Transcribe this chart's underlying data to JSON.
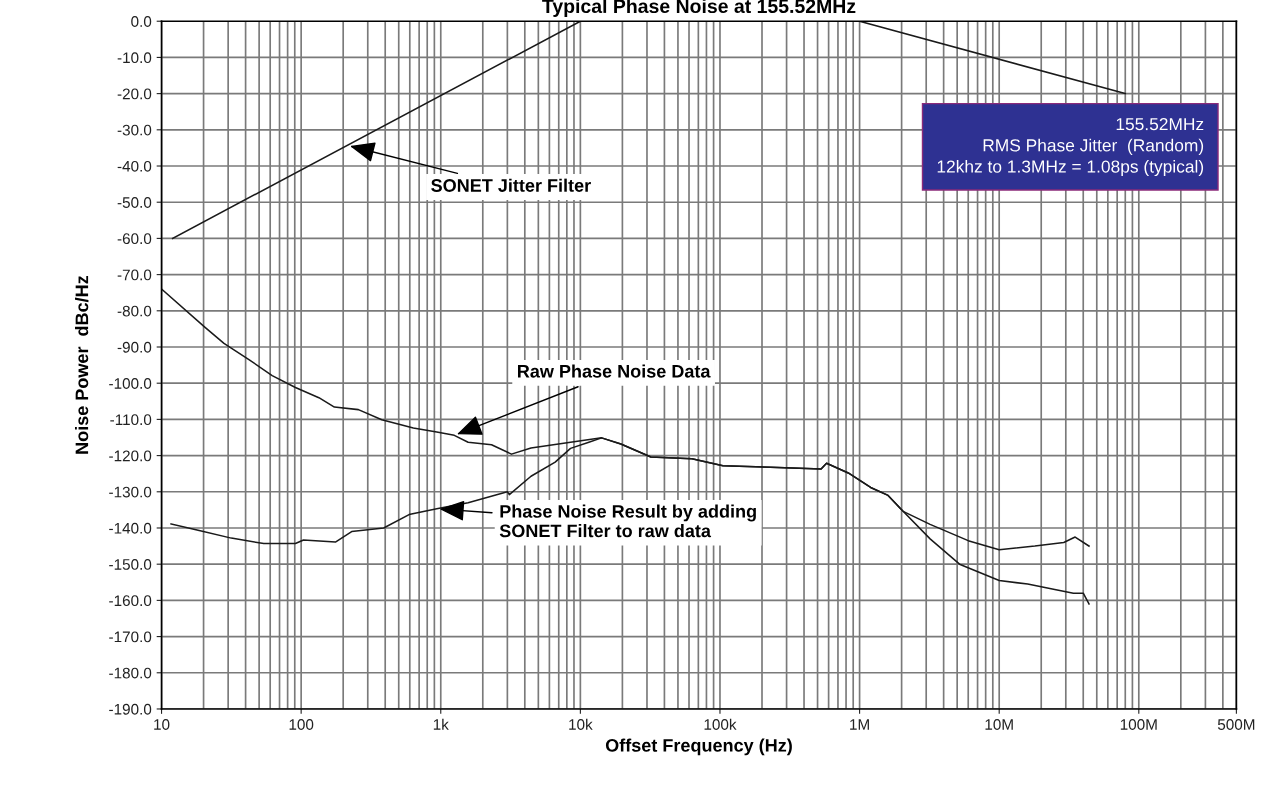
{
  "chart_data": {
    "type": "line",
    "title": "Typical Phase Noise at 155.52MHz",
    "xlabel": "Offset Frequency (Hz)",
    "ylabel": "Noise Power  dBc/Hz",
    "log": "x",
    "grid": true,
    "marker": "none",
    "line_style": "solid",
    "xlim": [
      10,
      500000000
    ],
    "xticks": [
      {
        "value": 10,
        "label": "10"
      },
      {
        "value": 100,
        "label": "100"
      },
      {
        "value": 1000,
        "label": "1k"
      },
      {
        "value": 10000,
        "label": "10k"
      },
      {
        "value": 100000,
        "label": "100k"
      },
      {
        "value": 1000000,
        "label": "1M"
      },
      {
        "value": 10000000,
        "label": "10M"
      },
      {
        "value": 100000000,
        "label": "100M"
      },
      {
        "value": 500000000,
        "label": "500M"
      }
    ],
    "ylim": [
      -190,
      0
    ],
    "yticks": [
      {
        "value": 0,
        "label": "0.0"
      },
      {
        "value": -10,
        "label": "-10.0"
      },
      {
        "value": -20,
        "label": "-20.0"
      },
      {
        "value": -30,
        "label": "-30.0"
      },
      {
        "value": -40,
        "label": "-40.0"
      },
      {
        "value": -50,
        "label": "-50.0"
      },
      {
        "value": -60,
        "label": "-60.0"
      },
      {
        "value": -70,
        "label": "-70.0"
      },
      {
        "value": -80,
        "label": "-80.0"
      },
      {
        "value": -90,
        "label": "-90.0"
      },
      {
        "value": -100,
        "label": "-100.0"
      },
      {
        "value": -110,
        "label": "-110.0"
      },
      {
        "value": -120,
        "label": "-120.0"
      },
      {
        "value": -130,
        "label": "-130.0"
      },
      {
        "value": -140,
        "label": "-140.0"
      },
      {
        "value": -150,
        "label": "-150.0"
      },
      {
        "value": -160,
        "label": "-160.0"
      },
      {
        "value": -170,
        "label": "-170.0"
      },
      {
        "value": -180,
        "label": "-180.0"
      },
      {
        "value": -190,
        "label": "-190.0"
      }
    ],
    "series": [
      {
        "color": "#1a1a1a",
        "x": [
          12,
          10000,
          1000000,
          80000000
        ],
        "values": [
          -60,
          0,
          0,
          -20
        ]
      },
      {
        "color": "#1a1a1a",
        "x": [
          10,
          20.4,
          28,
          42,
          62,
          91,
          134,
          173,
          257,
          378,
          636,
          936,
          1250,
          1570,
          2310,
          3210,
          4430,
          8500,
          14200,
          19500,
          32000,
          63000,
          105000,
          230000,
          530000,
          580000,
          830000,
          1200000,
          1600000,
          2050000,
          3200000,
          6000000,
          10000000,
          18000000,
          29000000,
          35000000,
          44000000
        ],
        "values": [
          -74,
          -84.5,
          -89,
          -93.4,
          -97.9,
          -101.2,
          -104,
          -106.6,
          -107.3,
          -110.1,
          -112.4,
          -113.5,
          -114.4,
          -116.3,
          -117,
          -119.6,
          -117.9,
          -116.3,
          -115.1,
          -116.8,
          -120.4,
          -120.9,
          -122.8,
          -123.2,
          -123.7,
          -122.1,
          -124.8,
          -128.8,
          -131,
          -135.4,
          -139,
          -143.5,
          -146,
          -145,
          -144,
          -142.5,
          -145
        ]
      },
      {
        "color": "#1a1a1a",
        "x": [
          11.7,
          18.6,
          31.6,
          54,
          91,
          104,
          176,
          230,
          390,
          593,
          936,
          1570,
          3000,
          3100,
          4430,
          6600,
          8500,
          11500,
          14200,
          19500,
          32000,
          63000,
          105000,
          230000,
          530000,
          580000,
          830000,
          1200000,
          1600000,
          2050000,
          3200000,
          5200000,
          10000000,
          16000000,
          25000000,
          34000000,
          40000000,
          44000000
        ],
        "values": [
          -138.9,
          -140.7,
          -142.8,
          -144.3,
          -144.3,
          -143.3,
          -143.9,
          -141,
          -140,
          -136.3,
          -134.7,
          -133,
          -130,
          -130.8,
          -125.7,
          -121.8,
          -118,
          -116.3,
          -115.1,
          -116.8,
          -120.4,
          -120.9,
          -122.8,
          -123.2,
          -123.7,
          -122.1,
          -124.8,
          -128.8,
          -131,
          -135.4,
          -143,
          -150,
          -154.5,
          -155.5,
          -157,
          -158,
          -158,
          -161
        ]
      }
    ],
    "annotations": [
      {
        "text": "SONET Jitter Filter",
        "x": 214,
        "y": -34.3
      },
      {
        "text": "Raw Phase Noise Data",
        "x": 1250,
        "y": -114.4
      },
      {
        "text": "Phase Noise Result by adding\nSONET Filter to raw data",
        "x": 936,
        "y": -134.7
      },
      "155.52MHz",
      "RMS Phase Jitter  (Random)",
      "12khz to 1.3MHz = 1.08ps (typical)"
    ]
  }
}
